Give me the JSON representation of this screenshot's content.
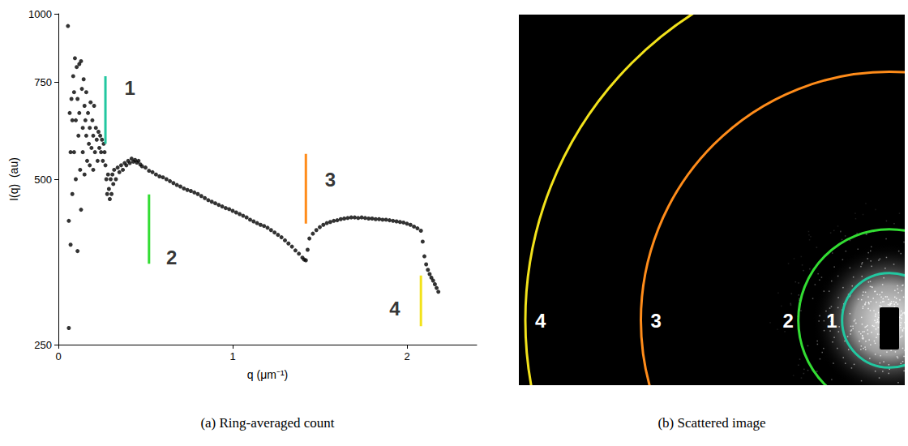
{
  "chart_data": {
    "type": "scatter",
    "caption": "(a) Ring-averaged count",
    "x_label": "q (μm⁻¹)",
    "y_label": "I(q)  (au)",
    "log": "y",
    "grid": false,
    "color": "#000000",
    "marker": "circle",
    "xlim": [
      0,
      2.4
    ],
    "xticks": [
      0,
      1,
      2
    ],
    "ylim": [
      250,
      1000
    ],
    "yticks": [
      250,
      500,
      750,
      1000
    ],
    "x": [
      0.055,
      0.06,
      0.06,
      0.065,
      0.07,
      0.07,
      0.075,
      0.08,
      0.08,
      0.085,
      0.09,
      0.09,
      0.095,
      0.1,
      0.1,
      0.105,
      0.11,
      0.11,
      0.115,
      0.12,
      0.12,
      0.125,
      0.13,
      0.13,
      0.135,
      0.14,
      0.14,
      0.145,
      0.15,
      0.15,
      0.155,
      0.16,
      0.16,
      0.165,
      0.17,
      0.175,
      0.18,
      0.18,
      0.185,
      0.19,
      0.195,
      0.2,
      0.2,
      0.205,
      0.21,
      0.215,
      0.22,
      0.225,
      0.23,
      0.235,
      0.24,
      0.245,
      0.25,
      0.255,
      0.26,
      0.265,
      0.27,
      0.275,
      0.28,
      0.285,
      0.29,
      0.295,
      0.3,
      0.305,
      0.31,
      0.315,
      0.32,
      0.33,
      0.34,
      0.35,
      0.36,
      0.37,
      0.38,
      0.39,
      0.4,
      0.41,
      0.42,
      0.43,
      0.44,
      0.45,
      0.46,
      0.47,
      0.48,
      0.5,
      0.52,
      0.54,
      0.56,
      0.58,
      0.6,
      0.62,
      0.64,
      0.66,
      0.68,
      0.7,
      0.72,
      0.74,
      0.76,
      0.78,
      0.8,
      0.82,
      0.84,
      0.86,
      0.88,
      0.9,
      0.92,
      0.94,
      0.96,
      0.98,
      1.0,
      1.02,
      1.04,
      1.06,
      1.08,
      1.1,
      1.12,
      1.14,
      1.16,
      1.18,
      1.2,
      1.22,
      1.24,
      1.26,
      1.28,
      1.3,
      1.32,
      1.34,
      1.36,
      1.38,
      1.4,
      1.41,
      1.42,
      1.43,
      1.44,
      1.46,
      1.48,
      1.5,
      1.52,
      1.54,
      1.56,
      1.58,
      1.6,
      1.62,
      1.64,
      1.66,
      1.68,
      1.7,
      1.72,
      1.74,
      1.76,
      1.78,
      1.8,
      1.82,
      1.84,
      1.86,
      1.88,
      1.9,
      1.92,
      1.94,
      1.96,
      1.98,
      2.0,
      2.02,
      2.04,
      2.06,
      2.08,
      2.09,
      2.1,
      2.11,
      2.12,
      2.13,
      2.14,
      2.15,
      2.16,
      2.17,
      2.18
    ],
    "values": [
      950,
      268,
      420,
      660,
      380,
      560,
      700,
      640,
      470,
      770,
      720,
      560,
      830,
      640,
      500,
      800,
      700,
      370,
      600,
      810,
      660,
      520,
      820,
      440,
      730,
      620,
      560,
      760,
      680,
      510,
      640,
      720,
      600,
      540,
      660,
      580,
      620,
      530,
      690,
      570,
      640,
      600,
      520,
      680,
      560,
      620,
      590,
      540,
      610,
      570,
      600,
      560,
      590,
      540,
      580,
      560,
      530,
      500,
      470,
      510,
      480,
      460,
      500,
      470,
      510,
      490,
      520,
      500,
      525,
      515,
      530,
      520,
      535,
      530,
      540,
      535,
      545,
      538,
      542,
      536,
      540,
      532,
      528,
      525,
      518,
      515,
      510,
      506,
      504,
      500,
      496,
      492,
      488,
      485,
      481,
      478,
      476,
      473,
      470,
      466,
      462,
      458,
      455,
      452,
      449,
      446,
      443,
      441,
      438,
      435,
      432,
      429,
      426,
      422,
      419,
      416,
      413,
      411,
      408,
      404,
      400,
      396,
      392,
      387,
      382,
      377,
      371,
      366,
      360,
      357,
      356,
      372,
      390,
      398,
      404,
      409,
      413,
      416,
      418,
      420,
      421,
      423,
      424,
      425,
      426,
      426,
      425,
      426,
      425,
      424,
      424,
      423,
      423,
      422,
      422,
      421,
      420,
      419,
      418,
      417,
      415,
      413,
      410,
      407,
      403,
      385,
      362,
      350,
      342,
      336,
      331,
      327,
      322,
      317,
      312
    ],
    "annotations": [
      {
        "label": "1",
        "q": 0.27,
        "y_from": 580,
        "y_to": 770,
        "label_at": [
          0.41,
          734
        ],
        "color": "#22c7a0"
      },
      {
        "label": "2",
        "q": 0.52,
        "y_from": 351,
        "y_to": 469,
        "label_at": [
          0.65,
          360
        ],
        "color": "#33dd33"
      },
      {
        "label": "3",
        "q": 1.42,
        "y_from": 415,
        "y_to": 556,
        "label_at": [
          1.56,
          500
        ],
        "color": "#ff8c1a"
      },
      {
        "label": "4",
        "q": 2.08,
        "y_from": 270,
        "y_to": 334,
        "label_at": [
          1.93,
          291
        ],
        "color": "#f2e21b"
      }
    ]
  },
  "image_panel": {
    "caption": "(b) Scattered image"
  }
}
